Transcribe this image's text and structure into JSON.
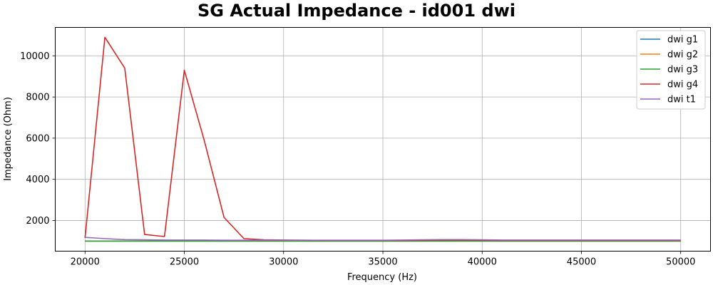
{
  "chart_data": {
    "type": "line",
    "title": "SG Actual Impedance - id001 dwi",
    "xlabel": "Frequency (Hz)",
    "ylabel": "Impedance (Ohm)",
    "xlim": [
      18500,
      51500
    ],
    "ylim": [
      510,
      11380
    ],
    "xticks": [
      20000,
      25000,
      30000,
      35000,
      40000,
      45000,
      50000
    ],
    "yticks": [
      2000,
      4000,
      6000,
      8000,
      10000
    ],
    "grid": true,
    "legend_position": "top-right",
    "x": [
      20000,
      21000,
      22000,
      23000,
      24000,
      25000,
      26000,
      27000,
      28000,
      29000,
      30000,
      31000,
      32000,
      33000,
      34000,
      35000,
      36000,
      37000,
      38000,
      39000,
      40000,
      41000,
      42000,
      43000,
      44000,
      45000,
      46000,
      47000,
      48000,
      49000,
      50000
    ],
    "series": [
      {
        "name": "dwi g1",
        "color": "#1f77b4",
        "values": [
          1000,
          1000,
          1000,
          1000,
          1000,
          1000,
          1000,
          1000,
          1000,
          1000,
          1000,
          1000,
          1000,
          1000,
          1000,
          1000,
          1000,
          1000,
          1000,
          1000,
          1000,
          1000,
          1000,
          1000,
          1000,
          1000,
          1000,
          1000,
          1000,
          1000,
          1000
        ]
      },
      {
        "name": "dwi g2",
        "color": "#ff7f0e",
        "values": [
          1000,
          1000,
          1000,
          1000,
          1000,
          1000,
          1000,
          1000,
          1000,
          1000,
          1000,
          1000,
          1000,
          1000,
          1000,
          1000,
          1000,
          1000,
          1000,
          1000,
          1000,
          1000,
          1000,
          1000,
          1000,
          1000,
          1000,
          1000,
          1000,
          1000,
          1000
        ]
      },
      {
        "name": "dwi g3",
        "color": "#2ca02c",
        "values": [
          1000,
          1000,
          1000,
          1000,
          1000,
          1000,
          1000,
          1000,
          1000,
          1000,
          1000,
          1000,
          1000,
          1000,
          1000,
          1000,
          1000,
          1000,
          1000,
          1000,
          1000,
          1000,
          1000,
          1000,
          1000,
          1000,
          1000,
          1000,
          1000,
          1000,
          1000
        ]
      },
      {
        "name": "dwi g4",
        "color": "#d62728",
        "values": [
          1150,
          10900,
          9400,
          1320,
          1220,
          9300,
          5900,
          2150,
          1120,
          1060,
          1050,
          1040,
          1030,
          1030,
          1030,
          1030,
          1030,
          1040,
          1050,
          1050,
          1040,
          1030,
          1030,
          1030,
          1030,
          1030,
          1030,
          1030,
          1030,
          1030,
          1030
        ]
      },
      {
        "name": "dwi t1",
        "color": "#9467bd",
        "values": [
          1180,
          1120,
          1070,
          1060,
          1050,
          1050,
          1050,
          1040,
          1040,
          1040,
          1040,
          1040,
          1040,
          1040,
          1040,
          1040,
          1050,
          1060,
          1070,
          1070,
          1060,
          1050,
          1050,
          1050,
          1050,
          1050,
          1050,
          1050,
          1050,
          1050,
          1050
        ]
      }
    ]
  }
}
